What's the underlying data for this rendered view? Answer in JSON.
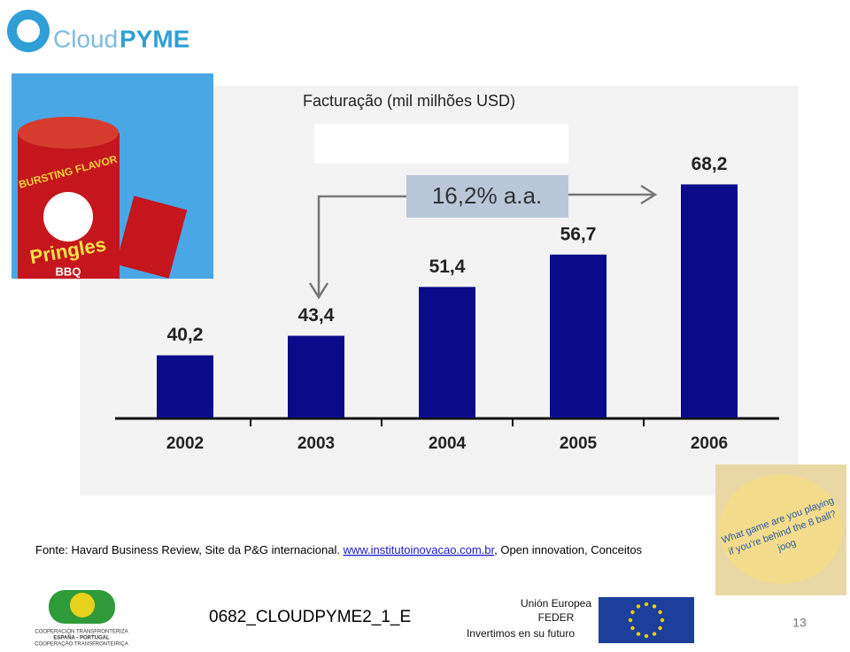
{
  "header": {
    "logo_cloud": "Cloud",
    "logo_pyme": "PYME"
  },
  "chart_data": {
    "type": "bar",
    "title": "Facturação (mil milhões USD)",
    "categories": [
      "2002",
      "2003",
      "2004",
      "2005",
      "2006"
    ],
    "values": [
      40.2,
      43.4,
      51.4,
      56.7,
      68.2
    ],
    "value_labels": [
      "40,2",
      "43,4",
      "51,4",
      "56,7",
      "68,2"
    ],
    "color": "#0b0b8a",
    "ylim": [
      30,
      80
    ],
    "annotation": "16,2% a.a."
  },
  "images": {
    "can_label": "Pringles",
    "can_flavor": "BURSTING FLAVOR",
    "can_variety": "BBQ",
    "chip_text": [
      "What game are you playing",
      "if you're behind the 8 ball?",
      "joog"
    ]
  },
  "source": {
    "prefix": "Fonte: Havard Business Review, Site da P&G internacional. ",
    "link": "www.institutoinovacao.com.br",
    "suffix": ", Open innovation, Conceitos"
  },
  "footer": {
    "code": "0682_CLOUDPYME2_1_E",
    "page": "13",
    "eu": [
      "Unión Europea",
      "FEDER",
      "Invertimos en su futuro"
    ],
    "program": [
      "COOPERACIÓN TRANSFRONTERIZA",
      "ESPAÑA - PORTUGAL",
      "COOPERAÇÃO TRANSFRONTEIRIÇA"
    ]
  }
}
